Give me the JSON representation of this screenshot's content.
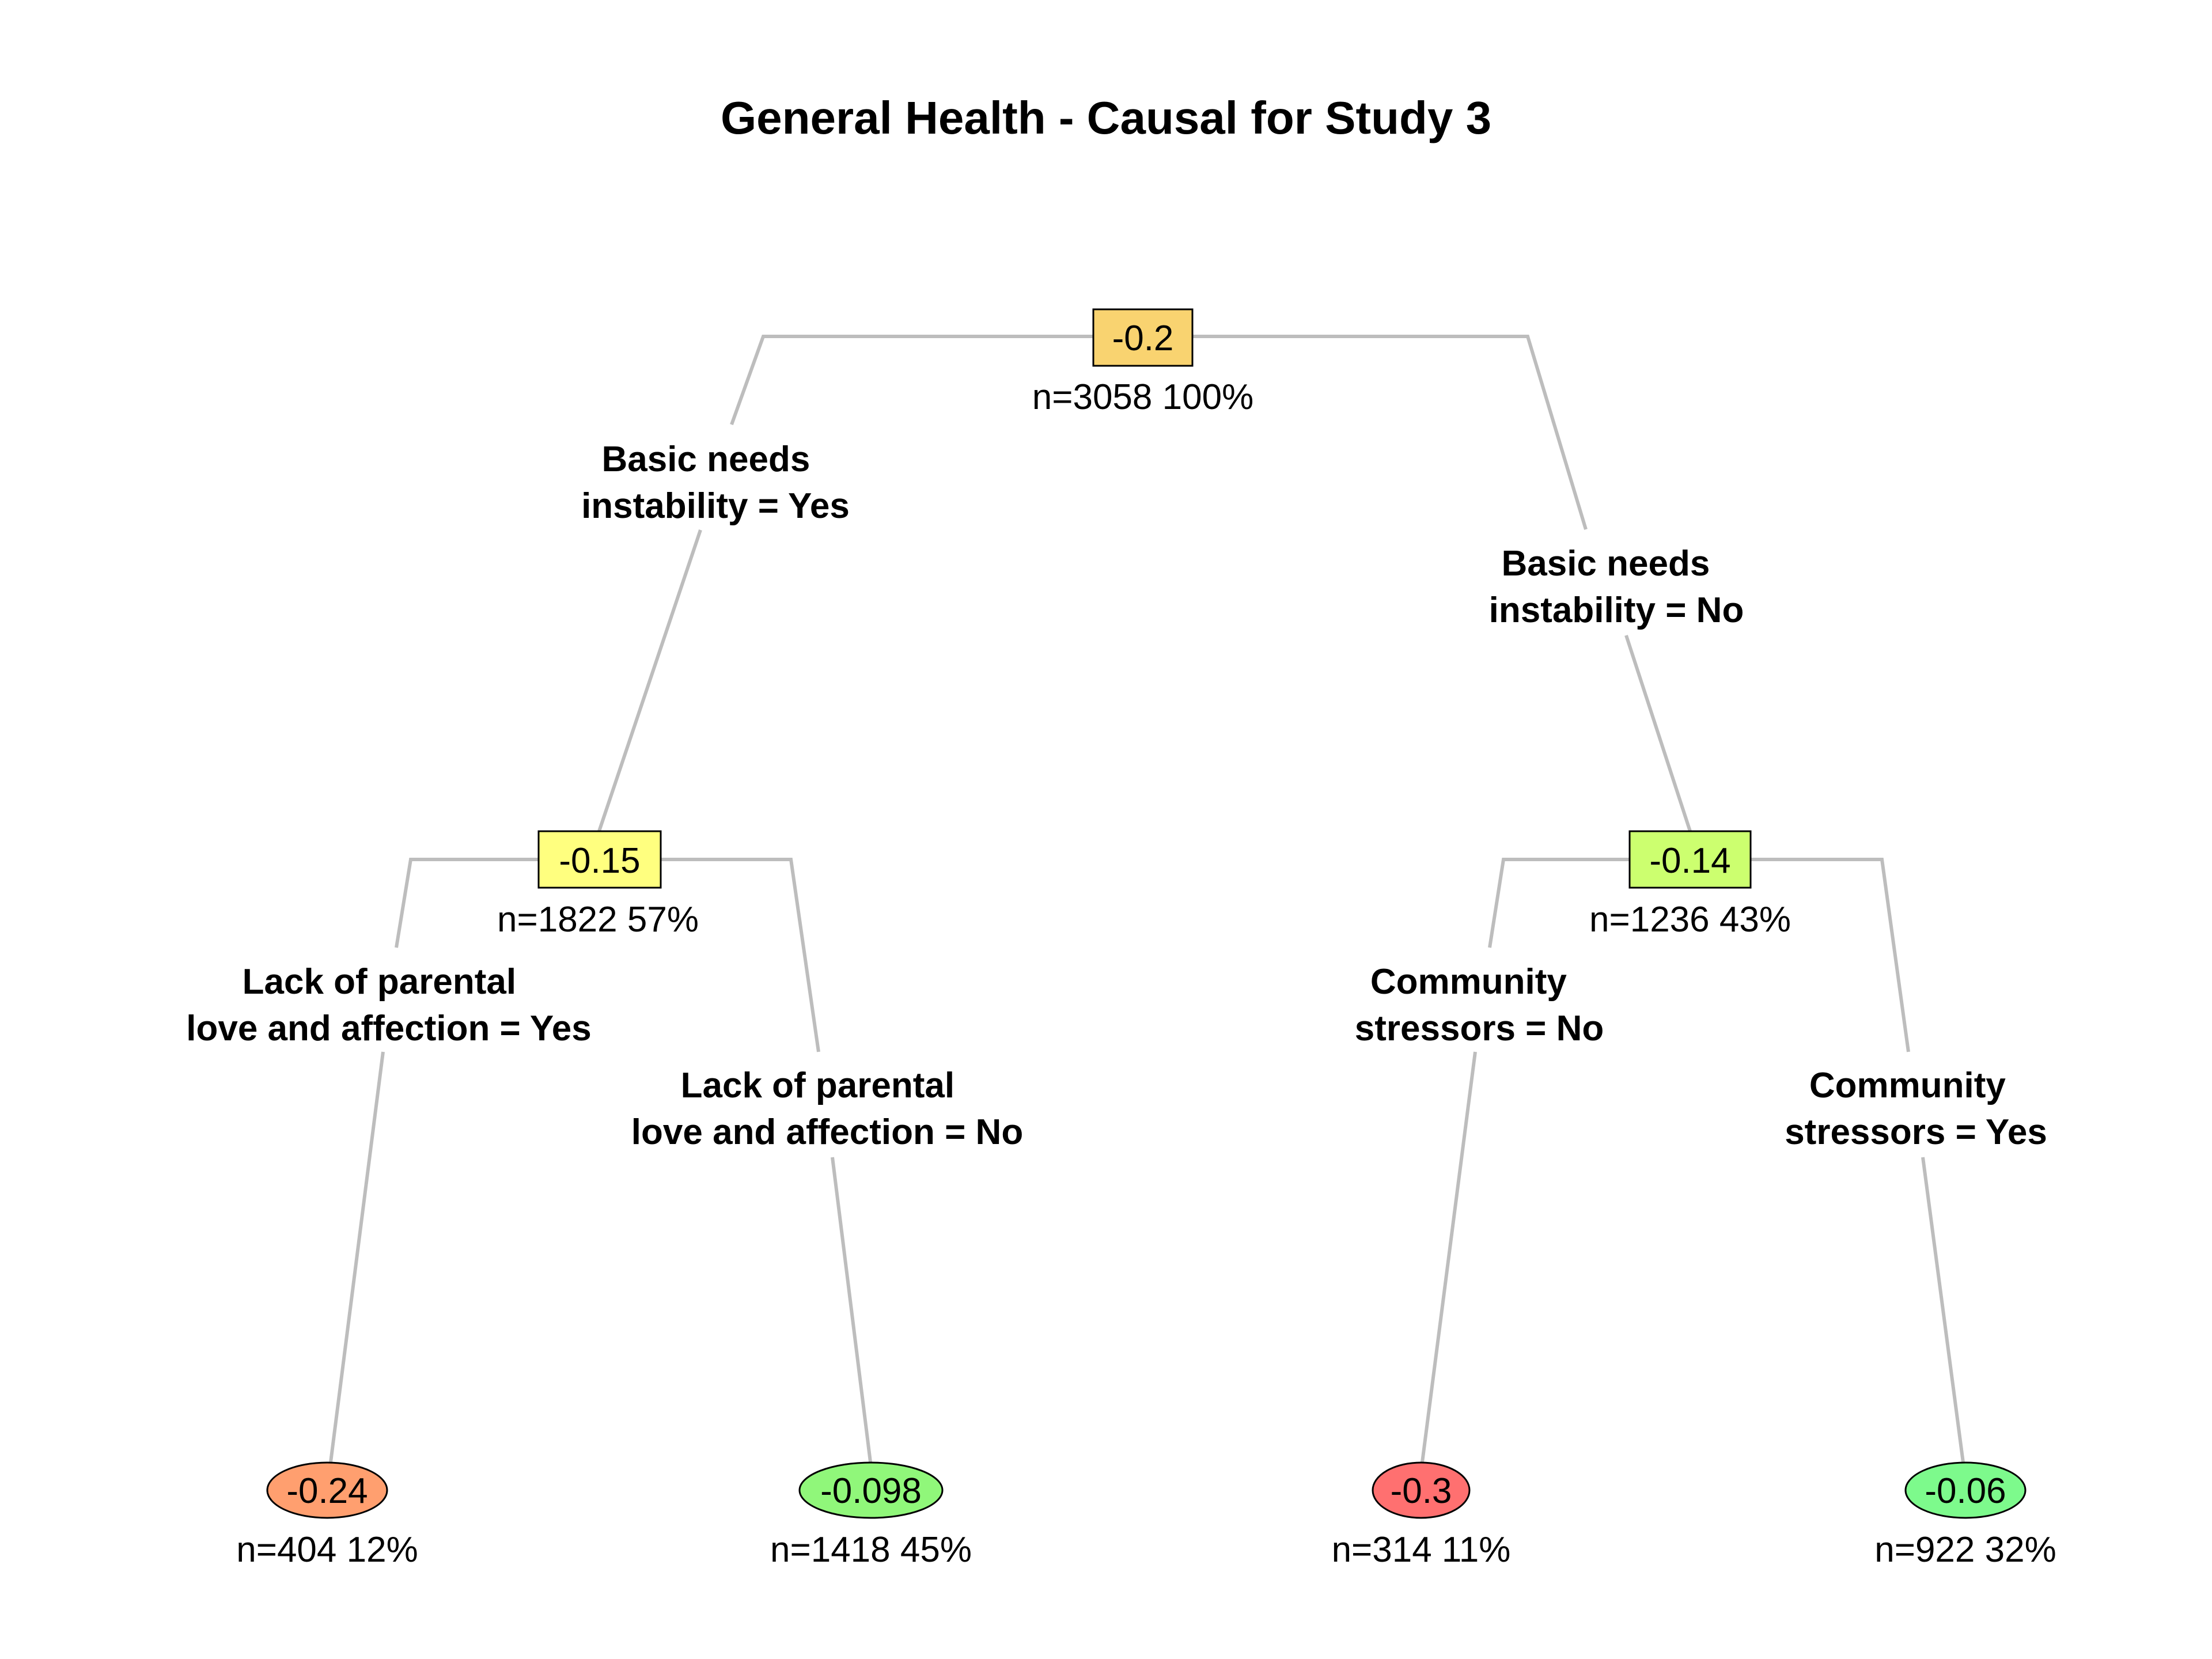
{
  "title": "General Health - Causal for Study 3",
  "colors": {
    "edge": "#bdbdbd",
    "root": "#f9d370",
    "basic_yes": "#ffff7f",
    "basic_no": "#ccff6f",
    "leaf_1": "#ff9f6f",
    "leaf_2": "#90f77a",
    "leaf_3": "#ff7070",
    "leaf_4": "#7dfa8c"
  },
  "tree": {
    "root": {
      "value": "-0.2",
      "count": "n=3058  100%"
    },
    "left": {
      "split": [
        "Basic needs",
        "instability = Yes"
      ],
      "value": "-0.15",
      "count": "n=1822  57%",
      "left": {
        "split": [
          "Lack of parental",
          "love and affection = Yes"
        ],
        "value": "-0.24",
        "count": "n=404  12%"
      },
      "right": {
        "split": [
          "Lack of parental",
          "love and affection = No"
        ],
        "value": "-0.098",
        "count": "n=1418  45%"
      }
    },
    "right": {
      "split": [
        "Basic needs",
        "instability = No"
      ],
      "value": "-0.14",
      "count": "n=1236  43%",
      "left": {
        "split": [
          "Community",
          "stressors = No"
        ],
        "value": "-0.3",
        "count": "n=314  11%"
      },
      "right": {
        "split": [
          "Community",
          "stressors = Yes"
        ],
        "value": "-0.06",
        "count": "n=922  32%"
      }
    }
  }
}
